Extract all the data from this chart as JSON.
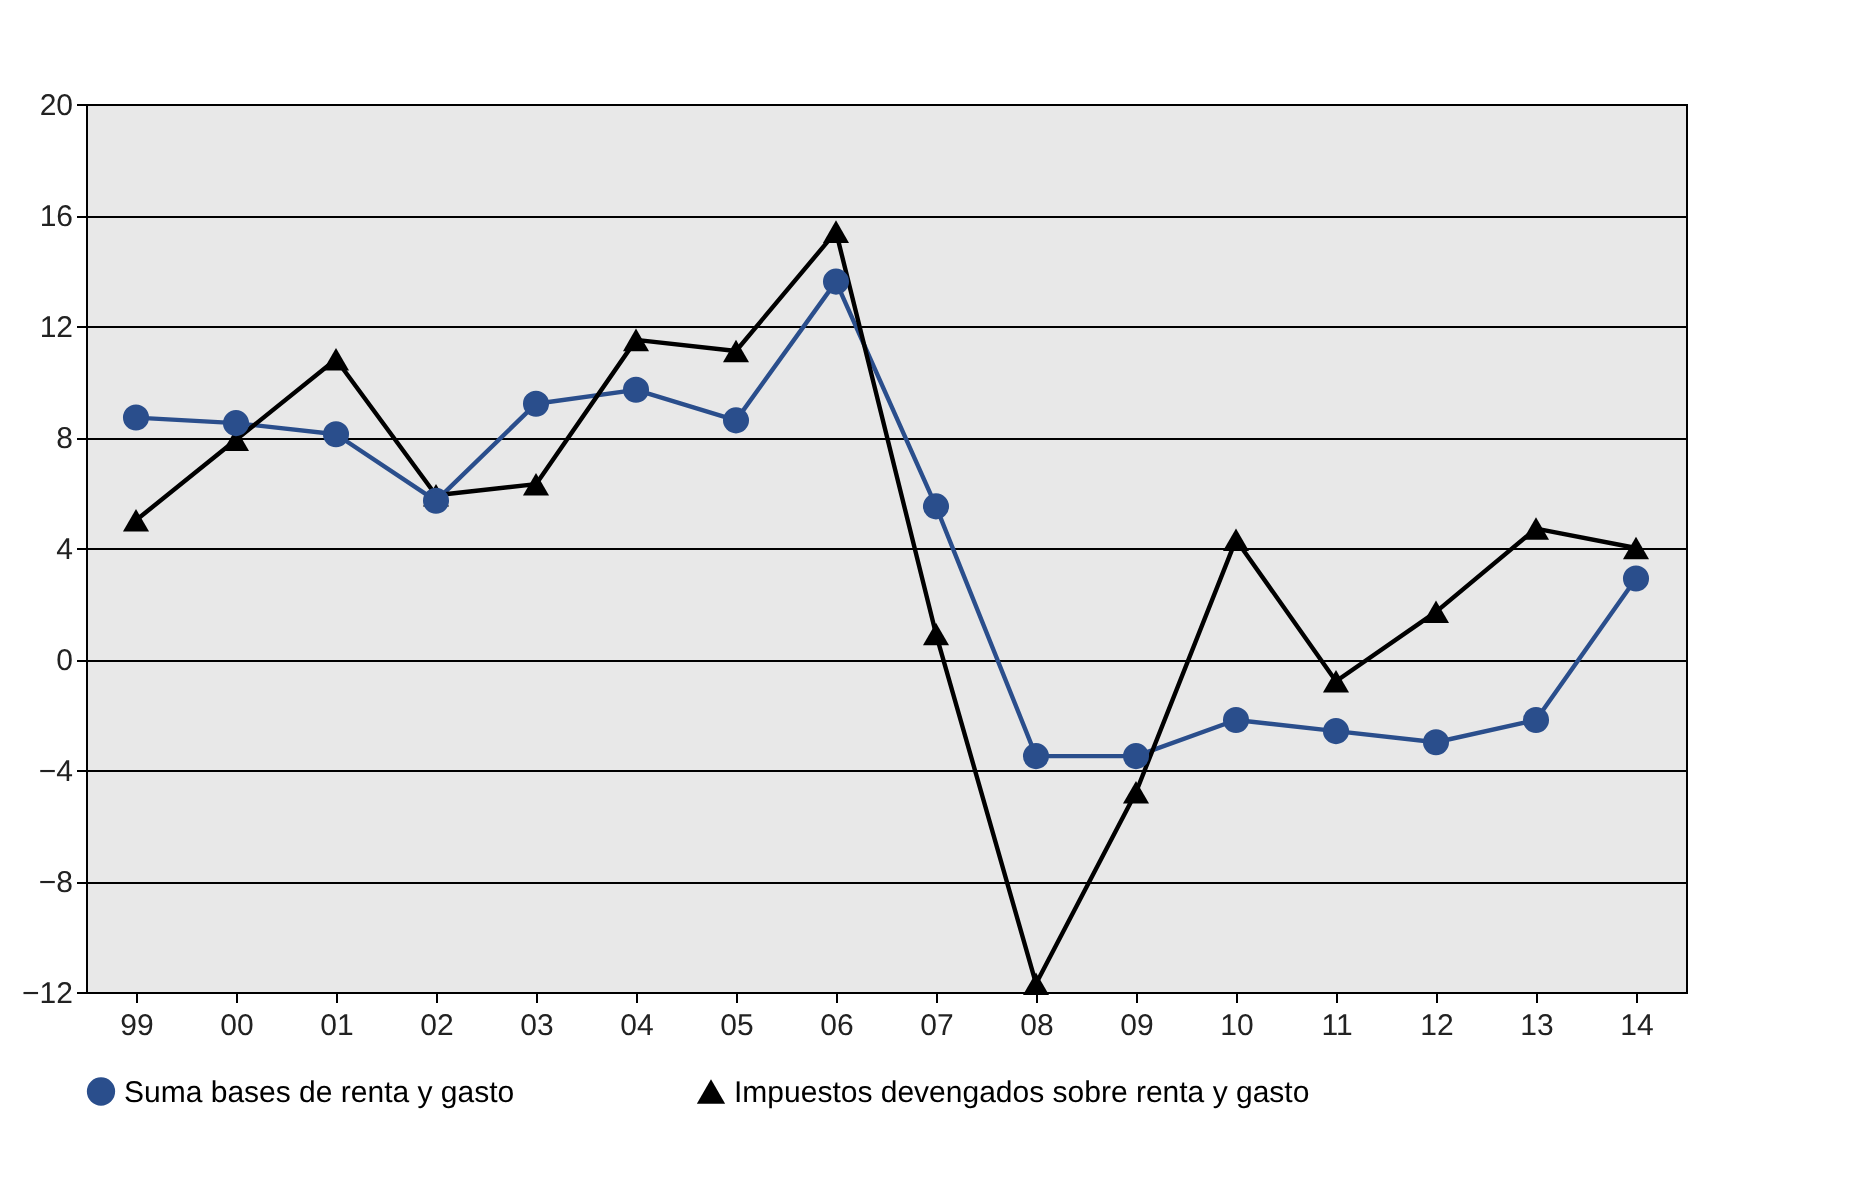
{
  "chart_data": {
    "type": "line",
    "categories": [
      "99",
      "00",
      "01",
      "02",
      "03",
      "04",
      "05",
      "06",
      "07",
      "08",
      "09",
      "10",
      "11",
      "12",
      "13",
      "14"
    ],
    "series": [
      {
        "name": "Suma bases de renta y gasto",
        "color": "#2a4e8c",
        "marker": "circle",
        "values": [
          8.7,
          8.5,
          8.1,
          5.7,
          9.2,
          9.7,
          8.6,
          13.6,
          5.5,
          -3.5,
          -3.5,
          -2.2,
          -2.6,
          -3.0,
          -2.2,
          2.9
        ]
      },
      {
        "name": "Impuestos devengados sobre renta y gasto",
        "color": "#000000",
        "marker": "triangle",
        "values": [
          5.0,
          7.9,
          10.8,
          5.9,
          6.3,
          11.5,
          11.1,
          15.4,
          0.9,
          -11.7,
          -4.8,
          4.3,
          -0.8,
          1.7,
          4.7,
          4.0
        ]
      }
    ],
    "ylim": [
      -12,
      20
    ],
    "yticks": [
      {
        "value": -12,
        "label": "−12"
      },
      {
        "value": -8,
        "label": "−8"
      },
      {
        "value": -4,
        "label": "−4"
      },
      0,
      4,
      8,
      12,
      16,
      20
    ],
    "grid": "y",
    "legend": "bottom",
    "line_style": "solid"
  }
}
